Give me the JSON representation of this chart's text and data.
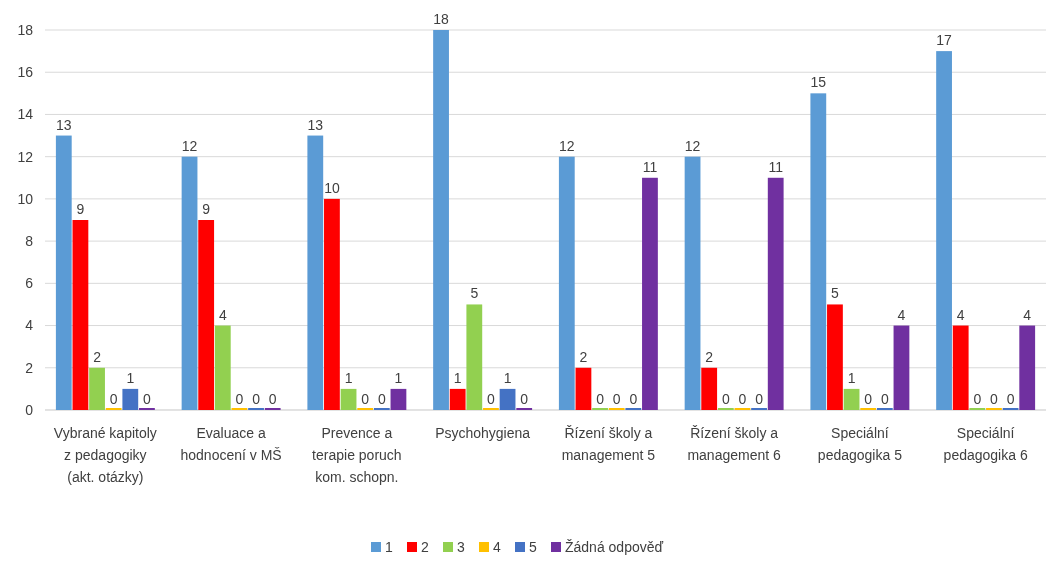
{
  "chart_data": {
    "type": "bar",
    "categories": [
      "Vybrané kapitoly z pedagogiky (akt. otázky)",
      "Evaluace a hodnocení v MŠ",
      "Prevence a terapie poruch kom. schopn.",
      "Psychohygiena",
      "Řízení školy a management 5",
      "Řízení školy a management 6",
      "Speciální pedagogika 5",
      "Speciální pedagogika 6"
    ],
    "series": [
      {
        "name": "1",
        "color": "#5b9bd5",
        "values": [
          13,
          12,
          13,
          18,
          12,
          12,
          15,
          17
        ]
      },
      {
        "name": "2",
        "color": "#ff0000",
        "values": [
          9,
          9,
          10,
          1,
          2,
          2,
          5,
          4
        ]
      },
      {
        "name": "3",
        "color": "#92d050",
        "values": [
          2,
          4,
          1,
          5,
          0,
          0,
          1,
          0
        ]
      },
      {
        "name": "4",
        "color": "#ffc000",
        "values": [
          0,
          0,
          0,
          0,
          0,
          0,
          0,
          0
        ]
      },
      {
        "name": "5",
        "color": "#4472c4",
        "values": [
          1,
          0,
          0,
          1,
          0,
          0,
          0,
          0
        ]
      },
      {
        "name": "Žádná odpověď",
        "color": "#7030a0",
        "values": [
          0,
          0,
          1,
          0,
          11,
          11,
          4,
          4
        ]
      }
    ],
    "ylim": [
      0,
      18
    ],
    "yticks": [
      0,
      2,
      4,
      6,
      8,
      10,
      12,
      14,
      16,
      18
    ],
    "grid": "y",
    "legend": "bottom",
    "data_labels": true
  }
}
